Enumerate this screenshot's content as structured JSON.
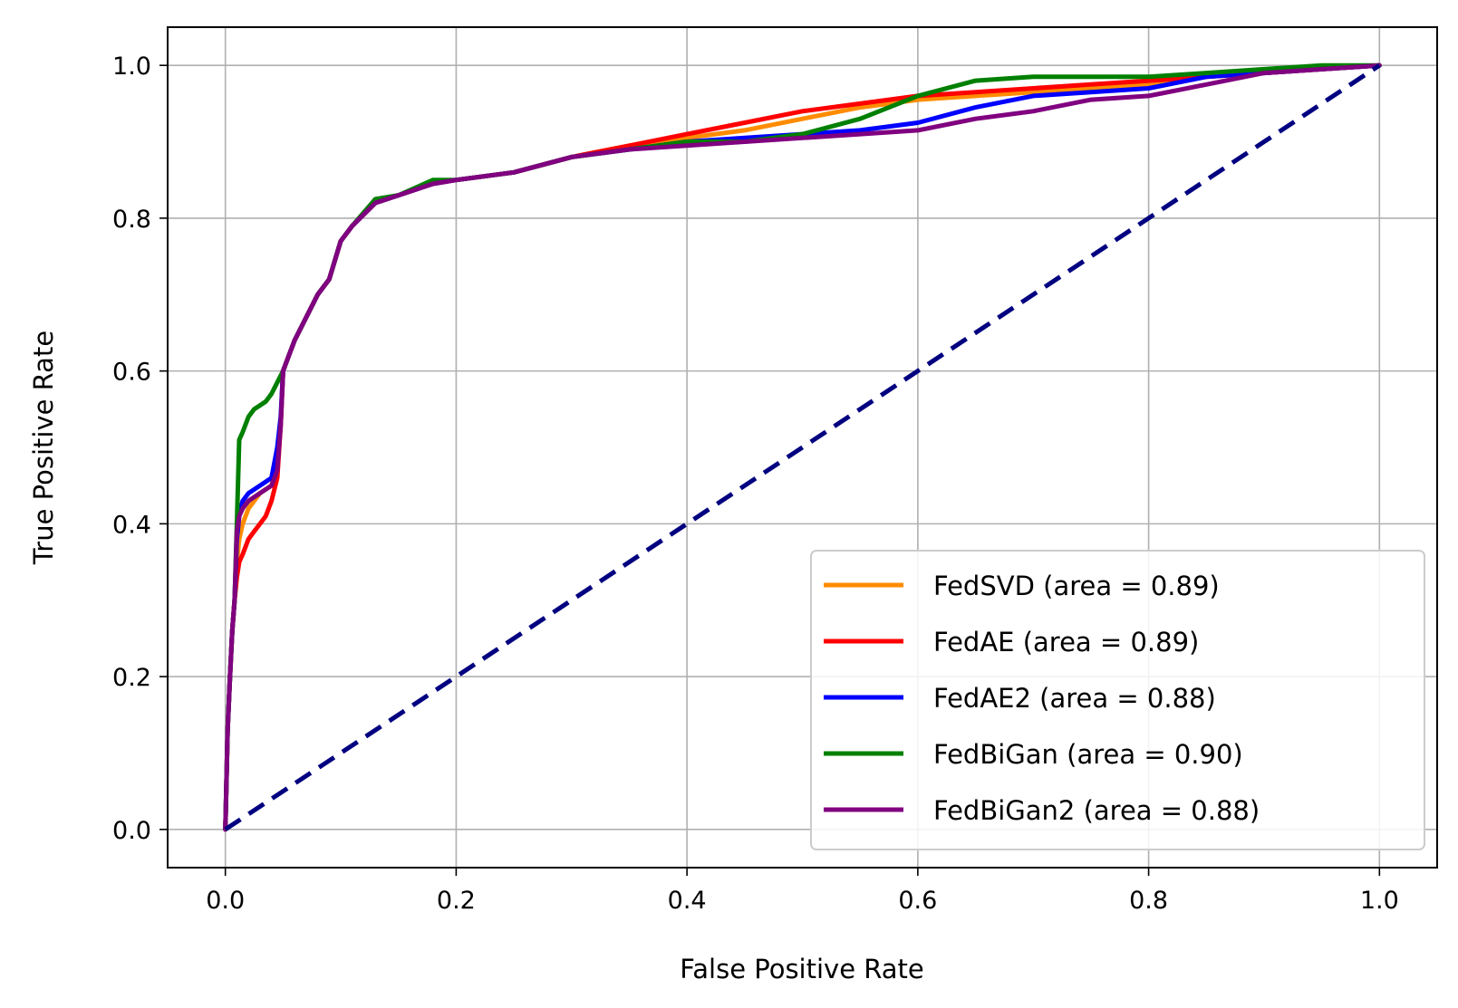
{
  "chart_data": {
    "type": "line",
    "title": "",
    "xlabel": "False Positive Rate",
    "ylabel": "True Positive Rate",
    "xlim": [
      -0.05,
      1.05
    ],
    "ylim": [
      -0.05,
      1.05
    ],
    "xticks": [
      0.0,
      0.2,
      0.4,
      0.6,
      0.8,
      1.0
    ],
    "yticks": [
      0.0,
      0.2,
      0.4,
      0.6,
      0.8,
      1.0
    ],
    "xtick_labels": [
      "0.0",
      "0.2",
      "0.4",
      "0.6",
      "0.8",
      "1.0"
    ],
    "ytick_labels": [
      "0.0",
      "0.2",
      "0.4",
      "0.6",
      "0.8",
      "1.0"
    ],
    "grid": true,
    "legend_position": "lower-right",
    "reference_line": {
      "name": "chance",
      "color": "#000080",
      "style": "dashed",
      "x": [
        0.0,
        1.0
      ],
      "y": [
        0.0,
        1.0
      ]
    },
    "series": [
      {
        "name": "FedSVD",
        "label": "FedSVD (area = 0.89)",
        "color": "#ff8c00",
        "x": [
          0,
          0.002,
          0.004,
          0.006,
          0.008,
          0.01,
          0.012,
          0.015,
          0.02,
          0.03,
          0.04,
          0.045,
          0.048,
          0.05,
          0.055,
          0.06,
          0.07,
          0.08,
          0.09,
          0.1,
          0.11,
          0.13,
          0.15,
          0.18,
          0.2,
          0.25,
          0.3,
          0.35,
          0.4,
          0.45,
          0.5,
          0.55,
          0.6,
          0.65,
          0.7,
          0.75,
          0.8,
          0.85,
          0.9,
          0.95,
          1.0
        ],
        "y": [
          0,
          0.13,
          0.2,
          0.26,
          0.3,
          0.35,
          0.38,
          0.4,
          0.42,
          0.44,
          0.45,
          0.48,
          0.53,
          0.6,
          0.62,
          0.64,
          0.67,
          0.7,
          0.72,
          0.77,
          0.79,
          0.82,
          0.83,
          0.845,
          0.85,
          0.86,
          0.88,
          0.895,
          0.905,
          0.915,
          0.93,
          0.945,
          0.955,
          0.96,
          0.965,
          0.97,
          0.975,
          0.985,
          0.99,
          0.995,
          1.0
        ]
      },
      {
        "name": "FedAE",
        "label": "FedAE (area = 0.89)",
        "color": "#ff0000",
        "x": [
          0,
          0.002,
          0.004,
          0.006,
          0.008,
          0.01,
          0.012,
          0.015,
          0.02,
          0.025,
          0.03,
          0.035,
          0.04,
          0.045,
          0.048,
          0.05,
          0.055,
          0.06,
          0.07,
          0.08,
          0.09,
          0.1,
          0.11,
          0.13,
          0.15,
          0.18,
          0.2,
          0.25,
          0.3,
          0.35,
          0.4,
          0.45,
          0.5,
          0.55,
          0.6,
          0.65,
          0.7,
          0.75,
          0.8,
          0.85,
          0.9,
          0.95,
          1.0
        ],
        "y": [
          0,
          0.13,
          0.2,
          0.26,
          0.3,
          0.33,
          0.35,
          0.36,
          0.38,
          0.39,
          0.4,
          0.41,
          0.43,
          0.46,
          0.53,
          0.6,
          0.62,
          0.64,
          0.67,
          0.7,
          0.72,
          0.77,
          0.79,
          0.82,
          0.83,
          0.845,
          0.85,
          0.86,
          0.88,
          0.895,
          0.91,
          0.925,
          0.94,
          0.95,
          0.96,
          0.965,
          0.97,
          0.975,
          0.98,
          0.985,
          0.99,
          0.995,
          1.0
        ]
      },
      {
        "name": "FedAE2",
        "label": "FedAE2 (area = 0.88)",
        "color": "#0000ff",
        "x": [
          0,
          0.002,
          0.004,
          0.006,
          0.008,
          0.01,
          0.012,
          0.015,
          0.02,
          0.03,
          0.04,
          0.045,
          0.048,
          0.05,
          0.055,
          0.06,
          0.07,
          0.08,
          0.09,
          0.1,
          0.11,
          0.13,
          0.15,
          0.18,
          0.2,
          0.25,
          0.3,
          0.35,
          0.4,
          0.45,
          0.5,
          0.55,
          0.6,
          0.65,
          0.7,
          0.75,
          0.8,
          0.85,
          0.9,
          0.95,
          1.0
        ],
        "y": [
          0,
          0.13,
          0.2,
          0.26,
          0.3,
          0.38,
          0.41,
          0.43,
          0.44,
          0.45,
          0.46,
          0.5,
          0.54,
          0.6,
          0.62,
          0.64,
          0.67,
          0.7,
          0.72,
          0.77,
          0.79,
          0.82,
          0.83,
          0.845,
          0.85,
          0.86,
          0.88,
          0.89,
          0.9,
          0.905,
          0.91,
          0.915,
          0.925,
          0.945,
          0.96,
          0.965,
          0.97,
          0.985,
          0.99,
          0.995,
          1.0
        ]
      },
      {
        "name": "FedBiGan",
        "label": "FedBiGan (area = 0.90)",
        "color": "#008000",
        "x": [
          0,
          0.002,
          0.004,
          0.006,
          0.008,
          0.01,
          0.012,
          0.015,
          0.02,
          0.025,
          0.03,
          0.035,
          0.04,
          0.045,
          0.05,
          0.055,
          0.06,
          0.07,
          0.08,
          0.09,
          0.1,
          0.11,
          0.13,
          0.15,
          0.18,
          0.2,
          0.25,
          0.3,
          0.35,
          0.4,
          0.45,
          0.5,
          0.55,
          0.6,
          0.65,
          0.7,
          0.75,
          0.8,
          0.85,
          0.9,
          0.95,
          1.0
        ],
        "y": [
          0,
          0.13,
          0.2,
          0.26,
          0.3,
          0.4,
          0.51,
          0.52,
          0.54,
          0.55,
          0.555,
          0.56,
          0.57,
          0.585,
          0.6,
          0.62,
          0.64,
          0.67,
          0.7,
          0.72,
          0.77,
          0.79,
          0.825,
          0.83,
          0.85,
          0.85,
          0.86,
          0.88,
          0.89,
          0.9,
          0.9,
          0.91,
          0.93,
          0.96,
          0.98,
          0.985,
          0.985,
          0.985,
          0.99,
          0.995,
          1.0,
          1.0
        ]
      },
      {
        "name": "FedBiGan2",
        "label": "FedBiGan2 (area = 0.88)",
        "color": "#800080",
        "x": [
          0,
          0.002,
          0.004,
          0.006,
          0.008,
          0.01,
          0.012,
          0.015,
          0.02,
          0.03,
          0.04,
          0.045,
          0.048,
          0.05,
          0.055,
          0.06,
          0.07,
          0.08,
          0.09,
          0.1,
          0.11,
          0.13,
          0.15,
          0.18,
          0.2,
          0.25,
          0.3,
          0.35,
          0.4,
          0.45,
          0.5,
          0.55,
          0.6,
          0.65,
          0.7,
          0.75,
          0.8,
          0.85,
          0.9,
          0.95,
          1.0
        ],
        "y": [
          0,
          0.13,
          0.2,
          0.26,
          0.3,
          0.39,
          0.41,
          0.42,
          0.43,
          0.44,
          0.45,
          0.47,
          0.53,
          0.6,
          0.62,
          0.64,
          0.67,
          0.7,
          0.72,
          0.77,
          0.79,
          0.82,
          0.83,
          0.845,
          0.85,
          0.86,
          0.88,
          0.89,
          0.895,
          0.9,
          0.905,
          0.91,
          0.915,
          0.93,
          0.94,
          0.955,
          0.96,
          0.975,
          0.99,
          0.995,
          1.0
        ]
      }
    ]
  }
}
